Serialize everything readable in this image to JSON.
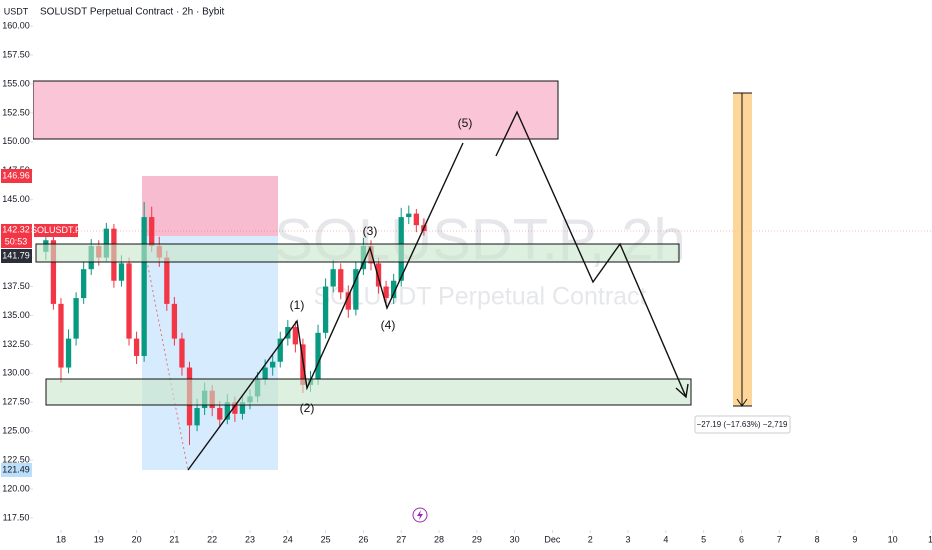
{
  "chart_data": {
    "type": "candlestick",
    "currency": "USDT",
    "title": "SOLUSDT Perpetual Contract · 2h · Bybit",
    "watermark": "SOLUSDT.P, 2h",
    "watermark_subtitle": "SOLUSDT Perpetual Contract",
    "up_color": "#089981",
    "down_color": "#f23645",
    "x": [
      17.6,
      17.8,
      18.0,
      18.2,
      18.4,
      18.6,
      18.8,
      19.0,
      19.2,
      19.4,
      19.6,
      19.8,
      20.0,
      20.2,
      20.4,
      20.6,
      20.8,
      21.0,
      21.2,
      21.4,
      21.6,
      21.8,
      22.0,
      22.2,
      22.4,
      22.6,
      22.8,
      23.0,
      23.2,
      23.4,
      23.6,
      23.8,
      24.0,
      24.2,
      24.4,
      24.6,
      24.8,
      25.0,
      25.2,
      25.4,
      25.6,
      25.8,
      26.0,
      26.2,
      26.4,
      26.6,
      26.8,
      27.0,
      27.2,
      27.4,
      27.6
    ],
    "open": [
      140.5,
      141.5,
      136,
      130.5,
      133,
      136.5,
      139,
      141,
      140,
      142.5,
      138,
      139.5,
      133,
      131.5,
      143.5,
      141,
      140,
      136,
      133,
      130.5,
      125.5,
      127,
      128.5,
      127,
      126,
      127.5,
      126.5,
      127.5,
      128,
      129.5,
      130.5,
      131,
      133,
      134,
      132.5,
      129,
      129.5,
      133.5,
      137.5,
      139,
      137,
      135.5,
      139,
      141,
      139.5,
      137.5,
      136.5,
      138,
      143.5,
      143.8,
      142.8
    ],
    "high": [
      142.2,
      141.9,
      136.5,
      133.8,
      137,
      139.6,
      141.6,
      141.5,
      143,
      142.9,
      140.2,
      140,
      133.6,
      144.8,
      144.4,
      141.8,
      140.6,
      136.6,
      133.5,
      131,
      127.8,
      129.2,
      129,
      127.6,
      128.2,
      128,
      128.1,
      128.6,
      130.1,
      131.2,
      131.7,
      133.6,
      134.6,
      134.5,
      133,
      130.2,
      134.2,
      138.2,
      139.8,
      139.5,
      137.6,
      139.6,
      141.7,
      141.5,
      140,
      138,
      138.6,
      144.3,
      144.5,
      144.2,
      143.4
    ],
    "low": [
      139.8,
      135.5,
      129.2,
      130,
      132.4,
      136,
      138.5,
      139.3,
      139.6,
      137.4,
      137.5,
      132.4,
      130.8,
      131,
      140.5,
      139.2,
      135.4,
      132.4,
      129.8,
      123.8,
      125,
      126.4,
      126.3,
      125.3,
      125.6,
      125.8,
      126,
      126.9,
      127.5,
      129,
      129.8,
      130.5,
      132.4,
      131.8,
      128.3,
      128.4,
      129,
      133,
      137,
      136.4,
      134.8,
      135,
      138.5,
      138.9,
      136.9,
      135.8,
      136,
      137.5,
      142.9,
      142.2,
      141.9
    ],
    "close": [
      141.5,
      136,
      130.5,
      133,
      136.5,
      139,
      141,
      140,
      142.5,
      138,
      139.5,
      133,
      131.5,
      143.5,
      141,
      140,
      136,
      133,
      130.5,
      125.5,
      127,
      128.5,
      127,
      126,
      127.5,
      126.5,
      127.5,
      128,
      129.5,
      130.5,
      131,
      133,
      134,
      132.5,
      129,
      129.5,
      133.5,
      137.5,
      139,
      137,
      135.5,
      139,
      141,
      139.5,
      137.5,
      136.5,
      138,
      143.5,
      143.8,
      142.8,
      142.3
    ],
    "xlim": [
      17.26,
      41.04
    ],
    "xticks": [
      18,
      19,
      20,
      21,
      22,
      23,
      24,
      25,
      26,
      27,
      28,
      29,
      30,
      {
        "value": 31,
        "label": "Dec"
      },
      {
        "value": 32,
        "label": "2"
      },
      {
        "value": 33,
        "label": "3"
      },
      {
        "value": 34,
        "label": "4"
      },
      {
        "value": 35,
        "label": "5"
      },
      {
        "value": 36,
        "label": "6"
      },
      {
        "value": 37,
        "label": "7"
      },
      {
        "value": 38,
        "label": "8"
      },
      {
        "value": 39,
        "label": "9"
      },
      {
        "value": 40,
        "label": "10"
      },
      {
        "value": 41,
        "label": "1"
      }
    ],
    "ylim": [
      116.46,
      162.26
    ],
    "yticks": [
      {
        "value": 117.5,
        "label": "117.50"
      },
      {
        "value": 120,
        "label": "120.00"
      },
      {
        "value": 122.5,
        "label": "122.50"
      },
      {
        "value": 125,
        "label": "125.00"
      },
      {
        "value": 127.5,
        "label": "127.50"
      },
      {
        "value": 130,
        "label": "130.00"
      },
      {
        "value": 132.5,
        "label": "132.50"
      },
      {
        "value": 135,
        "label": "135.00"
      },
      {
        "value": 137.5,
        "label": "137.50"
      },
      {
        "value": 140,
        "label": "140.00"
      },
      {
        "value": 142.5,
        "label": "142.50"
      },
      {
        "value": 145,
        "label": "145.00"
      },
      {
        "value": 147.5,
        "label": "147.50"
      },
      {
        "value": 150,
        "label": "150.00"
      },
      {
        "value": 152.5,
        "label": "152.50"
      },
      {
        "value": 155,
        "label": "155.00"
      },
      {
        "value": 157.5,
        "label": "157.50"
      },
      {
        "value": 160,
        "label": "160.00"
      }
    ],
    "price_tags": {
      "high": 146.96,
      "last": 142.32,
      "countdown": "50:53",
      "symbol": "SOLUSDT.P",
      "level": 141.79,
      "low": 121.49
    },
    "wave_labels": [
      "(1)",
      "(2)",
      "(3)",
      "(4)",
      "(5)"
    ],
    "measure_label": "−27.19 (−17.63%) −2,719"
  }
}
